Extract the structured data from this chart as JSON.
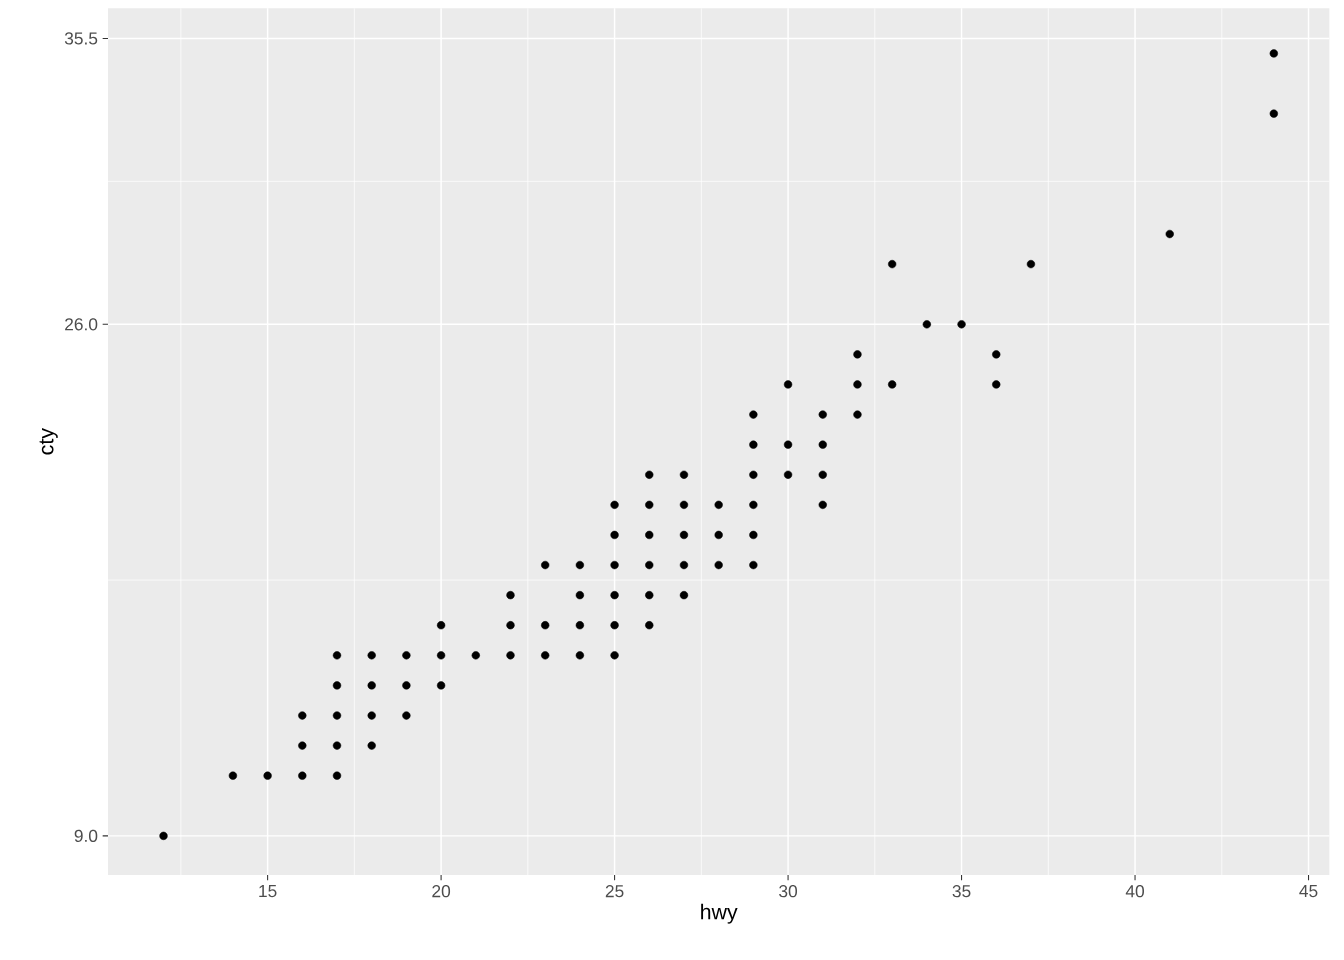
{
  "chart_data": {
    "type": "scatter",
    "xlabel": "hwy",
    "ylabel": "cty",
    "x": [
      12,
      14,
      15,
      16,
      16,
      16,
      17,
      17,
      17,
      17,
      17,
      18,
      18,
      18,
      18,
      19,
      19,
      19,
      20,
      20,
      20,
      21,
      22,
      22,
      22,
      23,
      23,
      23,
      24,
      24,
      24,
      24,
      25,
      25,
      25,
      25,
      25,
      25,
      26,
      26,
      26,
      26,
      26,
      26,
      27,
      27,
      27,
      27,
      27,
      28,
      28,
      28,
      29,
      29,
      29,
      29,
      29,
      29,
      30,
      30,
      30,
      31,
      31,
      31,
      31,
      32,
      32,
      32,
      33,
      33,
      34,
      35,
      36,
      36,
      37,
      41,
      44,
      44
    ],
    "values": [
      9,
      11,
      11,
      13,
      12,
      11,
      15,
      14,
      13,
      12,
      11,
      15,
      14,
      13,
      12,
      15,
      14,
      13,
      16,
      15,
      14,
      15,
      17,
      16,
      15,
      18,
      16,
      15,
      18,
      17,
      16,
      15,
      20,
      19,
      18,
      17,
      16,
      15,
      21,
      20,
      19,
      18,
      17,
      16,
      21,
      20,
      19,
      18,
      17,
      20,
      19,
      18,
      23,
      22,
      21,
      20,
      19,
      18,
      24,
      22,
      21,
      23,
      22,
      21,
      20,
      25,
      24,
      23,
      28,
      24,
      26,
      26,
      25,
      24,
      28,
      29,
      35,
      33
    ],
    "color": "#000000",
    "marker": "circle",
    "grid": true,
    "xlim": [
      10.4,
      45.6
    ],
    "ylim": [
      7.7,
      36.5
    ],
    "xticks": [
      15,
      20,
      25,
      30,
      35,
      40,
      45
    ],
    "yticks": [
      {
        "value": 9,
        "label": "9.0"
      },
      {
        "value": 26,
        "label": "26.0"
      },
      {
        "value": 35.5,
        "label": "35.5"
      }
    ]
  }
}
